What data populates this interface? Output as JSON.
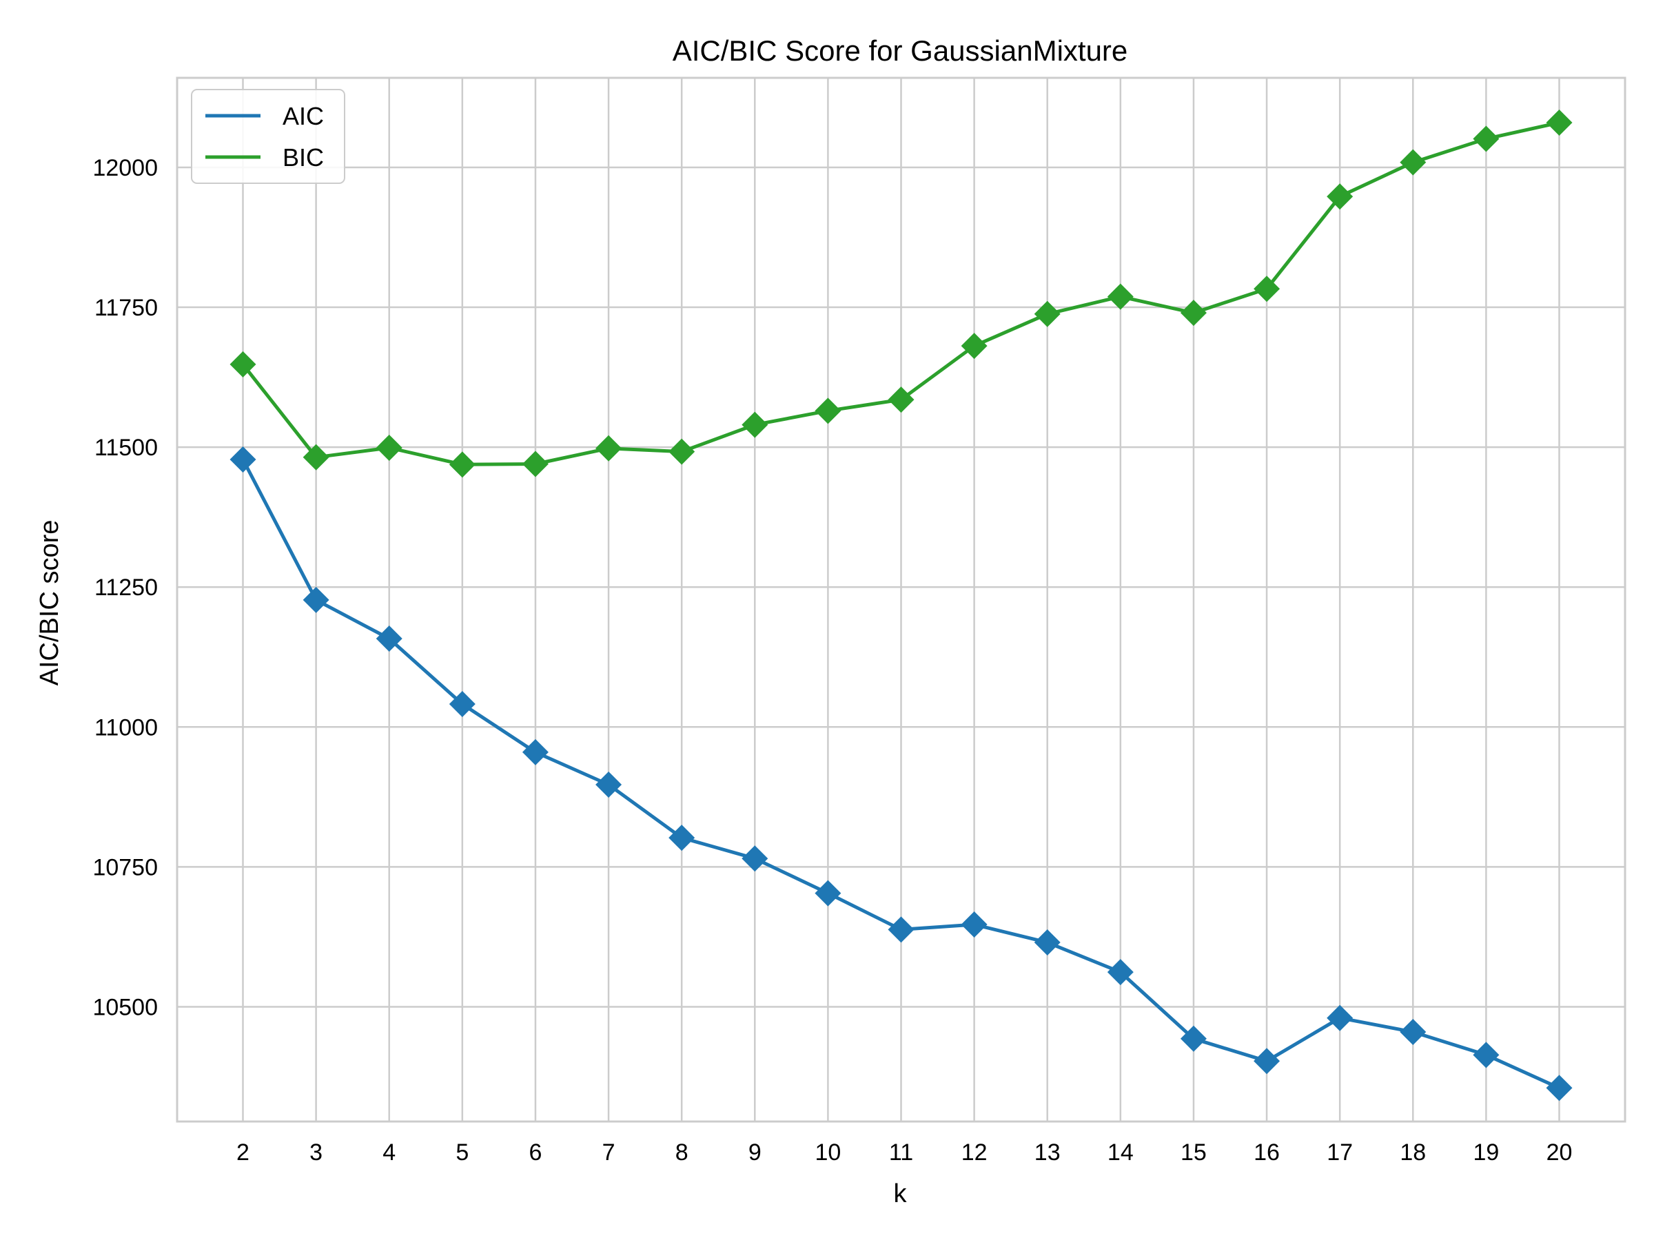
{
  "chart_data": {
    "type": "line",
    "title": "AIC/BIC Score for GaussianMixture",
    "xlabel": "k",
    "ylabel": "AIC/BIC score",
    "x": [
      2,
      3,
      4,
      5,
      6,
      7,
      8,
      9,
      10,
      11,
      12,
      13,
      14,
      15,
      16,
      17,
      18,
      19,
      20
    ],
    "xlim": [
      1.1,
      20.9
    ],
    "ylim": [
      10295,
      12160
    ],
    "yticks": [
      10500,
      10750,
      11000,
      11250,
      11500,
      11750,
      12000
    ],
    "grid": true,
    "legend": "top-left",
    "marker": "diamond",
    "series": [
      {
        "name": "AIC",
        "color": "#1f77b4",
        "values": [
          11478,
          11227,
          11158,
          11041,
          10955,
          10897,
          10802,
          10765,
          10703,
          10638,
          10647,
          10615,
          10562,
          10443,
          10403,
          10480,
          10455,
          10414,
          10355
        ]
      },
      {
        "name": "BIC",
        "color": "#2ca02c",
        "values": [
          11648,
          11482,
          11499,
          11469,
          11470,
          11498,
          11492,
          11540,
          11565,
          11585,
          11681,
          11738,
          11769,
          11740,
          11783,
          11948,
          12009,
          12051,
          12080
        ]
      }
    ]
  }
}
